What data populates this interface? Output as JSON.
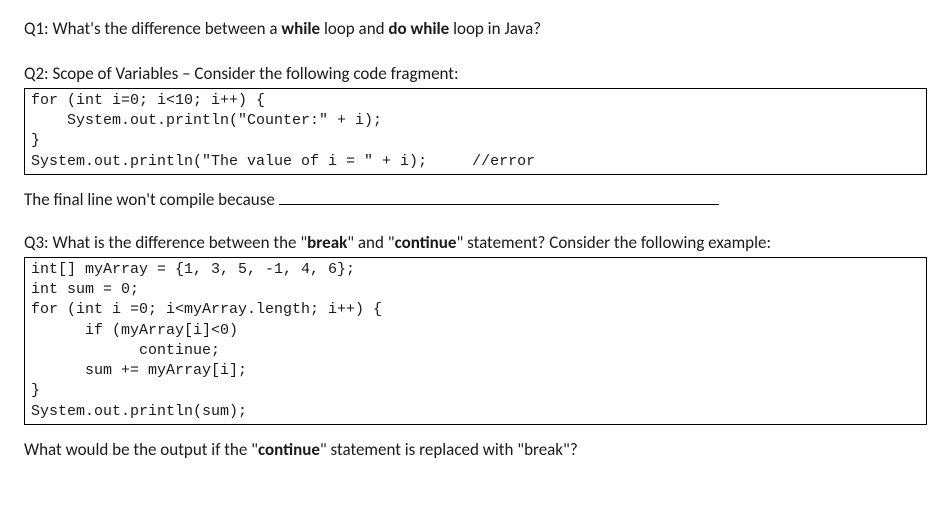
{
  "q1": {
    "label": "Q1:",
    "text_before_bold1": " What's the difference between a ",
    "bold1": "while",
    "text_mid": " loop and ",
    "bold2": "do while",
    "text_after": " loop in Java?"
  },
  "q2": {
    "label": "Q2:",
    "title_rest": " Scope of Variables – Consider the following code fragment:",
    "code": "for (int i=0; i<10; i++) {\n    System.out.println(\"Counter:\" + i);\n}\nSystem.out.println(\"The value of i = \" + i);     //error",
    "followup": "The final line won't compile because"
  },
  "q3": {
    "label": "Q3:",
    "t1": " What is the difference between the \"",
    "b1": "break",
    "t2": "\" and \"",
    "b2": "continue",
    "t3": "\" statement? Consider the following example:",
    "code": "int[] myArray = {1, 3, 5, -1, 4, 6};\nint sum = 0;\nfor (int i =0; i<myArray.length; i++) {\n      if (myArray[i]<0)\n            continue;\n      sum += myArray[i];\n}\nSystem.out.println(sum);",
    "followup_t1": "What would be the output if the \"",
    "followup_b1": "continue",
    "followup_t2": "\" statement is replaced with \"break\"?"
  }
}
